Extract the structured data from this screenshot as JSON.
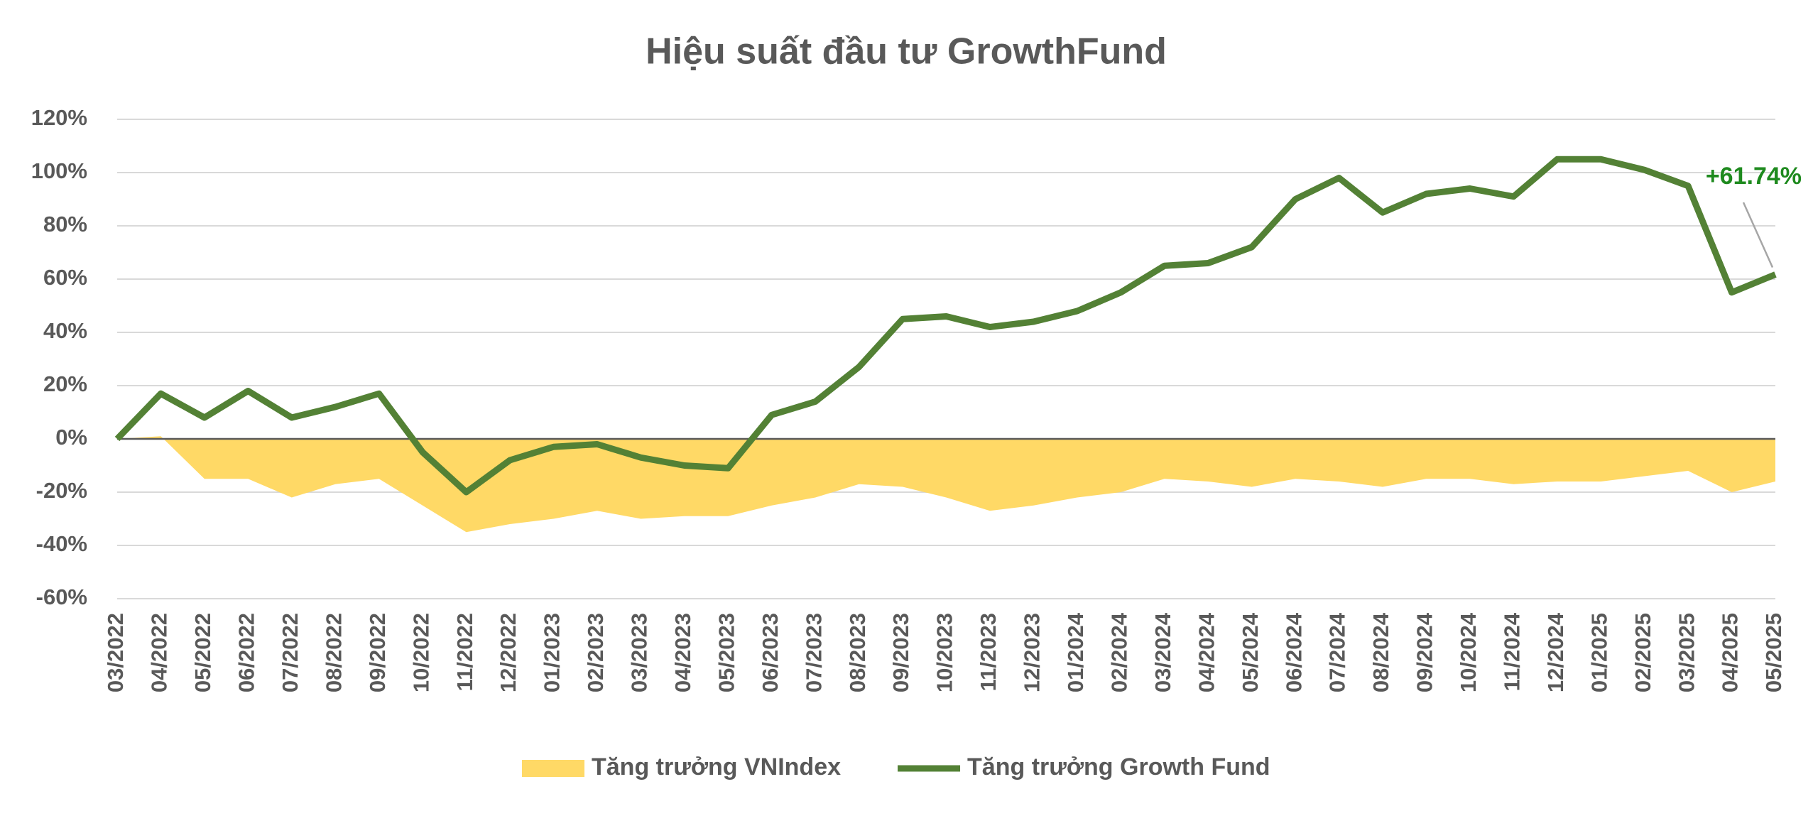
{
  "chart_data": {
    "type": "line",
    "title": "Hiệu suất đầu tư GrowthFund",
    "categories": [
      "03/2022",
      "04/2022",
      "05/2022",
      "06/2022",
      "07/2022",
      "08/2022",
      "09/2022",
      "10/2022",
      "11/2022",
      "12/2022",
      "01/2023",
      "02/2023",
      "03/2023",
      "04/2023",
      "05/2023",
      "06/2023",
      "07/2023",
      "08/2023",
      "09/2023",
      "10/2023",
      "11/2023",
      "12/2023",
      "01/2024",
      "02/2024",
      "03/2024",
      "04/2024",
      "05/2024",
      "06/2024",
      "07/2024",
      "08/2024",
      "09/2024",
      "10/2024",
      "11/2024",
      "12/2024",
      "01/2025",
      "02/2025",
      "03/2025",
      "04/2025",
      "05/2025"
    ],
    "series": [
      {
        "name": "Tăng trưởng VNIndex",
        "color": "#ffd966",
        "kind": "area",
        "values": [
          0,
          1,
          -15,
          -15,
          -22,
          -17,
          -15,
          -25,
          -35,
          -32,
          -30,
          -27,
          -30,
          -29,
          -29,
          -25,
          -22,
          -17,
          -18,
          -22,
          -27,
          -25,
          -22,
          -20,
          -15,
          -16,
          -18,
          -15,
          -16,
          -18,
          -15,
          -15,
          -17,
          -16,
          -16,
          -14,
          -12,
          -20,
          -16
        ]
      },
      {
        "name": "Tăng trưởng Growth Fund",
        "color": "#538135",
        "kind": "line",
        "values": [
          0,
          17,
          8,
          18,
          8,
          12,
          17,
          -5,
          -20,
          -8,
          -3,
          -2,
          -7,
          -10,
          -11,
          9,
          14,
          27,
          45,
          46,
          42,
          44,
          48,
          55,
          65,
          66,
          72,
          90,
          98,
          85,
          92,
          94,
          91,
          105,
          105,
          101,
          95,
          55,
          61.74
        ]
      }
    ],
    "annotation": "+61.74%",
    "ylim": [
      -60,
      120
    ],
    "yticks": [
      {
        "value": -60,
        "label": "-60%"
      },
      {
        "value": -40,
        "label": "-40%"
      },
      {
        "value": -20,
        "label": "-20%"
      },
      {
        "value": 0,
        "label": "0%"
      },
      {
        "value": 20,
        "label": "20%"
      },
      {
        "value": 40,
        "label": "40%"
      },
      {
        "value": 60,
        "label": "60%"
      },
      {
        "value": 80,
        "label": "80%"
      },
      {
        "value": 100,
        "label": "100%"
      },
      {
        "value": 120,
        "label": "120%"
      }
    ],
    "grid": true,
    "legend": "bottom"
  }
}
